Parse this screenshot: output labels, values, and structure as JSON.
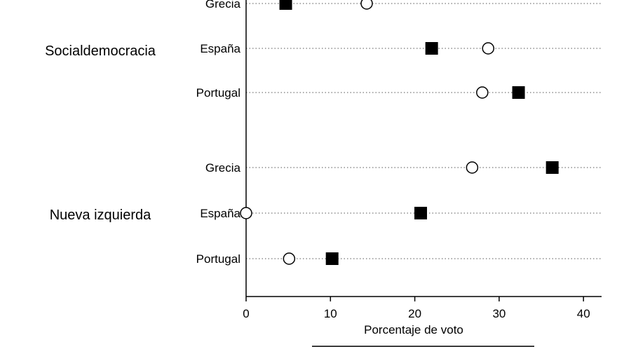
{
  "chart_data": {
    "type": "dot",
    "xlabel": "Porcentaje de voto",
    "xlim": [
      0,
      42
    ],
    "xticks": [
      0,
      10,
      20,
      30,
      40
    ],
    "grid": "dotted horizontal lines per row",
    "markers": {
      "filled_square_color": "#000000",
      "hollow_circle_color": "#000000"
    },
    "groups": [
      {
        "name": "Socialdemocracia",
        "rows": [
          {
            "label": "Grecia",
            "filled_square": 4.7,
            "hollow_circle": 14.3
          },
          {
            "label": "España",
            "filled_square": 22.0,
            "hollow_circle": 28.7
          },
          {
            "label": "Portugal",
            "filled_square": 32.3,
            "hollow_circle": 28.0
          }
        ]
      },
      {
        "name": "Nueva izquierda",
        "rows": [
          {
            "label": "Grecia",
            "filled_square": 36.3,
            "hollow_circle": 26.8
          },
          {
            "label": "España",
            "filled_square": 20.7,
            "hollow_circle": 0.0
          },
          {
            "label": "Portugal",
            "filled_square": 10.2,
            "hollow_circle": 5.1
          }
        ]
      }
    ]
  }
}
